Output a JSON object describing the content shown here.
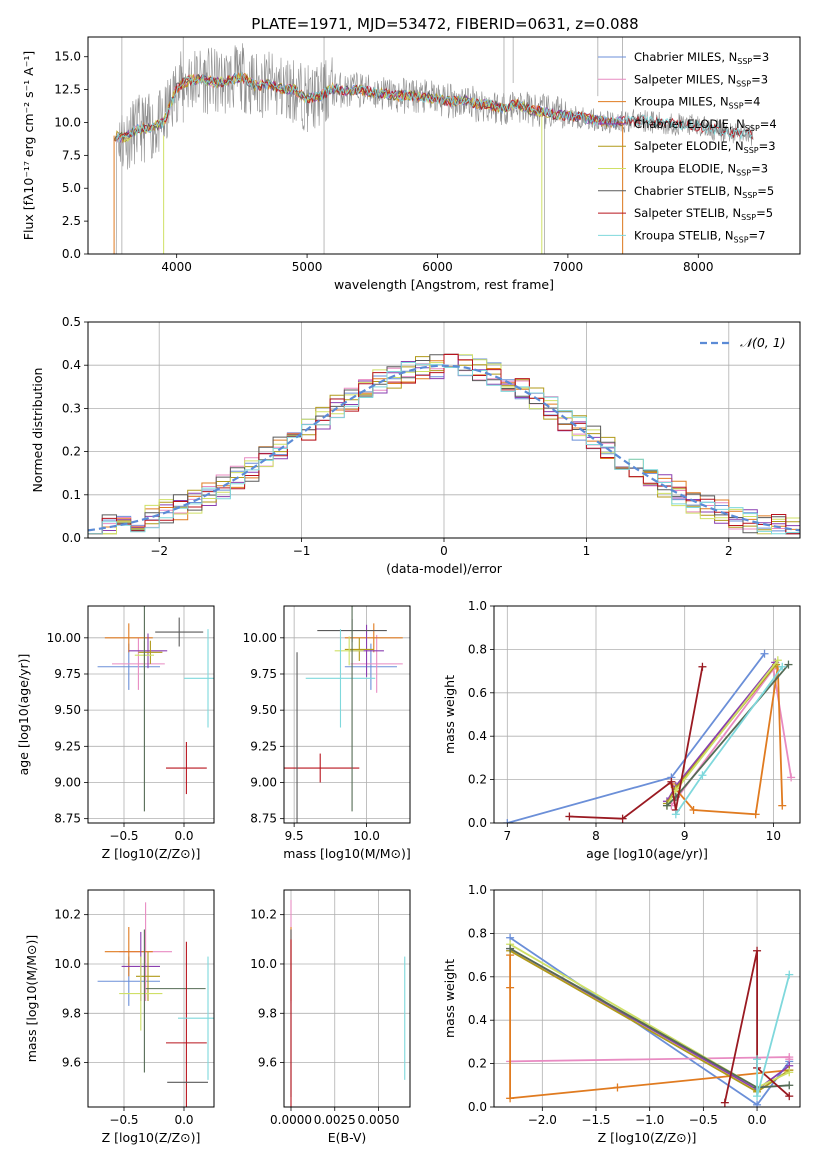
{
  "figure_title": "PLATE=1971, MJD=53472, FIBERID=0631, z=0.088",
  "colors": {
    "chabrier_miles": "#6b8fd8",
    "salpeter_miles": "#e88bc2",
    "kroupa_miles": "#e07b20",
    "chabrier_elodie": "#8a3fb0",
    "salpeter_elodie": "#b09a1a",
    "kroupa_elodie": "#cfe066",
    "chabrier_stelib": "#5a5a5a",
    "salpeter_stelib": "#b8141e",
    "kroupa_stelib": "#7fd8dc",
    "spectrum": "#8c8c8c",
    "grid": "#b0b0b0",
    "normal_curve": "#5b8bd6"
  },
  "chart_data": [
    {
      "id": "spectrum",
      "type": "line",
      "title": "PLATE=1971, MJD=53472, FIBERID=0631, z=0.088",
      "xlabel": "wavelength [Angstrom, rest frame]",
      "ylabel": "Flux [fλ10⁻¹⁷ erg cm⁻² s⁻¹ A⁻¹]",
      "xlim": [
        3320,
        8780
      ],
      "ylim": [
        0,
        16.5
      ],
      "xticks": [
        4000,
        5000,
        6000,
        7000,
        8000
      ],
      "yticks": [
        0.0,
        2.5,
        5.0,
        7.5,
        10.0,
        12.5,
        15.0
      ],
      "grid": false,
      "legend_position": "right",
      "legend": [
        {
          "label": "Chabrier MILES, N",
          "sub": "SSP",
          "suffix": "=3",
          "color": "#6b8fd8"
        },
        {
          "label": "Salpeter MILES, N",
          "sub": "SSP",
          "suffix": "=3",
          "color": "#e88bc2"
        },
        {
          "label": "Kroupa MILES, N",
          "sub": "SSP",
          "suffix": "=4",
          "color": "#e07b20"
        },
        {
          "label": "Chabrier ELODIE, N",
          "sub": "SSP",
          "suffix": "=4",
          "color": "#8a3fb0"
        },
        {
          "label": "Salpeter ELODIE, N",
          "sub": "SSP",
          "suffix": "=3",
          "color": "#b09a1a"
        },
        {
          "label": "Kroupa ELODIE, N",
          "sub": "SSP",
          "suffix": "=3",
          "color": "#cfe066"
        },
        {
          "label": "Chabrier STELIB, N",
          "sub": "SSP",
          "suffix": "=5",
          "color": "#5a5a5a"
        },
        {
          "label": "Salpeter STELIB, N",
          "sub": "SSP",
          "suffix": "=5",
          "color": "#b8141e"
        },
        {
          "label": "Kroupa STELIB, N",
          "sub": "SSP",
          "suffix": "=7",
          "color": "#7fd8dc"
        }
      ],
      "spectrum_outline": {
        "x": [
          3520,
          3600,
          3700,
          3800,
          3900,
          4000,
          4050,
          4100,
          4200,
          4300,
          4400,
          4500,
          4600,
          4700,
          4800,
          4900,
          5000,
          5100,
          5200,
          5300,
          5400,
          5500,
          5600,
          5700,
          5800,
          5900,
          6000,
          6100,
          6200,
          6300,
          6400,
          6500,
          6600,
          6700,
          6800,
          6900,
          7000,
          7100,
          7200,
          7300,
          7400,
          7500,
          7600,
          7700,
          7800,
          7900,
          8000,
          8100,
          8200,
          8300,
          8400
        ],
        "y": [
          9.0,
          8.8,
          9.5,
          9.6,
          10.0,
          12.6,
          13.0,
          13.2,
          13.3,
          13.0,
          13.2,
          13.5,
          12.8,
          12.9,
          12.6,
          12.5,
          11.8,
          12.0,
          12.6,
          12.4,
          12.5,
          12.3,
          12.2,
          12.0,
          12.1,
          11.9,
          11.8,
          11.6,
          11.7,
          11.4,
          11.3,
          11.1,
          11.4,
          11.0,
          10.8,
          10.6,
          10.5,
          10.4,
          10.2,
          10.0,
          10.1,
          10.1,
          10.2,
          9.9,
          9.9,
          9.8,
          9.7,
          9.5,
          9.3,
          9.2,
          9.1
        ]
      }
    },
    {
      "id": "residuals",
      "type": "line",
      "xlabel": "(data-model)/error",
      "ylabel": "Normed distribution",
      "xlim": [
        -2.5,
        2.5
      ],
      "ylim": [
        0,
        0.5
      ],
      "xticks": [
        -2,
        -1,
        0,
        1,
        2
      ],
      "yticks": [
        0.0,
        0.1,
        0.2,
        0.3,
        0.4,
        0.5
      ],
      "grid": true,
      "legend_position": "top-right",
      "legend": [
        {
          "label": "𝒩(0, 1)",
          "style": "dashed",
          "color": "#5b8bd6"
        }
      ],
      "normal_curve": {
        "mu": 0,
        "sigma": 1
      },
      "bin_width": 0.1
    },
    {
      "id": "age_vs_Z",
      "type": "scatter",
      "xlabel": "Z [log10(Z/Z⊙)]",
      "ylabel": "age  [log10(age/yr)]",
      "xlim": [
        -0.8,
        0.25
      ],
      "ylim": [
        8.72,
        10.22
      ],
      "xticks": [
        -0.5,
        0.0
      ],
      "yticks": [
        8.75,
        9.0,
        9.25,
        9.5,
        9.75,
        10.0
      ],
      "grid": true,
      "points": [
        {
          "series": "Chabrier MILES",
          "x": -0.46,
          "y": 9.8,
          "xerr": 0.26,
          "yerr": 0.16,
          "color": "#6b8fd8"
        },
        {
          "series": "Salpeter MILES",
          "x": -0.38,
          "y": 9.82,
          "xerr": 0.22,
          "yerr": 0.18,
          "color": "#e88bc2"
        },
        {
          "series": "Kroupa MILES",
          "x": -0.46,
          "y": 10.0,
          "xerr": 0.2,
          "yerr": 0.1,
          "color": "#e07b20"
        },
        {
          "series": "Chabrier ELODIE",
          "x": -0.3,
          "y": 9.91,
          "xerr": 0.16,
          "yerr": 0.12,
          "color": "#8a3fb0"
        },
        {
          "series": "Salpeter ELODIE",
          "x": -0.28,
          "y": 9.9,
          "xerr": 0.1,
          "yerr": 0.08,
          "color": "#b09a1a"
        },
        {
          "series": "Kroupa ELODIE",
          "x": -0.33,
          "y": 9.88,
          "xerr": 0.08,
          "yerr": 0.1,
          "color": "#cfe066"
        },
        {
          "series": "Chabrier STELIB",
          "x": -0.04,
          "y": 10.04,
          "xerr": 0.2,
          "yerr": 0.1,
          "color": "#5a5a5a"
        },
        {
          "series": "Salpeter STELIB",
          "x": 0.02,
          "y": 9.1,
          "xerr": 0.17,
          "yerr": 0.18,
          "color": "#b8141e"
        },
        {
          "series": "Kroupa STELIB",
          "x": 0.2,
          "y": 9.72,
          "xerr": 0.2,
          "yerr": 0.34,
          "color": "#7fd8dc"
        },
        {
          "series": "Chabrier STELIB (2)",
          "x": -0.33,
          "y": 9.85,
          "xerr": 0.0,
          "yerr": 1.05,
          "color": "#556b55"
        }
      ]
    },
    {
      "id": "age_vs_mass",
      "type": "scatter",
      "xlabel": "mass [log10(M/M⊙)]",
      "ylabel": "",
      "xlim": [
        9.43,
        10.3
      ],
      "ylim": [
        8.72,
        10.22
      ],
      "xticks": [
        9.5,
        10.0
      ],
      "yticks": [
        8.75,
        9.0,
        9.25,
        9.5,
        9.75,
        10.0
      ],
      "grid": true,
      "points": [
        {
          "series": "Chabrier MILES",
          "x": 10.03,
          "y": 9.8,
          "xerr": 0.18,
          "yerr": 0.16,
          "color": "#6b8fd8"
        },
        {
          "series": "Salpeter MILES",
          "x": 10.07,
          "y": 9.82,
          "xerr": 0.18,
          "yerr": 0.2,
          "color": "#e88bc2"
        },
        {
          "series": "Kroupa MILES",
          "x": 10.05,
          "y": 10.0,
          "xerr": 0.2,
          "yerr": 0.1,
          "color": "#e07b20"
        },
        {
          "series": "Chabrier ELODIE",
          "x": 10.0,
          "y": 9.91,
          "xerr": 0.12,
          "yerr": 0.18,
          "color": "#8a3fb0"
        },
        {
          "series": "Salpeter ELODIE",
          "x": 9.95,
          "y": 9.92,
          "xerr": 0.1,
          "yerr": 0.08,
          "color": "#b09a1a"
        },
        {
          "series": "Kroupa ELODIE",
          "x": 9.88,
          "y": 9.91,
          "xerr": 0.1,
          "yerr": 0.1,
          "color": "#cfe066"
        },
        {
          "series": "Chabrier STELIB",
          "x": 9.9,
          "y": 10.05,
          "xerr": 0.24,
          "yerr": 0.08,
          "color": "#5a5a5a"
        },
        {
          "series": "Salpeter STELIB",
          "x": 9.68,
          "y": 9.1,
          "xerr": 0.27,
          "yerr": 0.1,
          "color": "#b8141e"
        },
        {
          "series": "Kroupa STELIB",
          "x": 9.82,
          "y": 9.72,
          "xerr": 0.24,
          "yerr": 0.34,
          "color": "#7fd8dc"
        },
        {
          "series": "Chabrier STELIB (2)",
          "x": 9.52,
          "y": 9.1,
          "xerr": 0.0,
          "yerr": 0.8,
          "color": "#5a5a5a"
        },
        {
          "series": "Chabrier STELIB (3)",
          "x": 9.9,
          "y": 9.8,
          "xerr": 0.0,
          "yerr": 1.0,
          "color": "#556b55"
        }
      ]
    },
    {
      "id": "mass_weight_vs_age",
      "type": "line",
      "xlabel": "age  [log10(age/yr)]",
      "ylabel": "mass weight",
      "xlim": [
        6.85,
        10.3
      ],
      "ylim": [
        0,
        1.0
      ],
      "xticks": [
        7,
        8,
        9,
        10
      ],
      "yticks": [
        0.0,
        0.2,
        0.4,
        0.6,
        0.8,
        1.0
      ],
      "grid": true,
      "series": [
        {
          "name": "Chabrier MILES",
          "color": "#6b8fd8",
          "x": [
            7.0,
            8.85,
            9.9
          ],
          "y": [
            0.0,
            0.21,
            0.78
          ]
        },
        {
          "name": "Salpeter MILES",
          "color": "#e88bc2",
          "x": [
            8.85,
            10.0,
            10.2
          ],
          "y": [
            0.08,
            0.71,
            0.21
          ]
        },
        {
          "name": "Kroupa MILES",
          "color": "#e07b20",
          "x": [
            8.85,
            9.1,
            9.8,
            10.05,
            10.1
          ],
          "y": [
            0.18,
            0.06,
            0.04,
            0.72,
            0.08
          ]
        },
        {
          "name": "Chabrier ELODIE",
          "color": "#8a3fb0",
          "x": [
            8.8,
            8.9,
            10.02
          ],
          "y": [
            0.1,
            0.17,
            0.74
          ]
        },
        {
          "name": "Salpeter ELODIE",
          "color": "#b09a1a",
          "x": [
            8.8,
            8.9,
            10.03
          ],
          "y": [
            0.09,
            0.16,
            0.73
          ]
        },
        {
          "name": "Kroupa ELODIE",
          "color": "#cfe066",
          "x": [
            8.8,
            8.9,
            10.05
          ],
          "y": [
            0.08,
            0.15,
            0.75
          ]
        },
        {
          "name": "Chabrier STELIB",
          "color": "#556b55",
          "x": [
            8.8,
            8.9,
            10.17
          ],
          "y": [
            0.08,
            0.12,
            0.73
          ]
        },
        {
          "name": "Salpeter STELIB",
          "color": "#9a1a22",
          "x": [
            7.7,
            8.3,
            8.85,
            8.9,
            9.2
          ],
          "y": [
            0.03,
            0.02,
            0.19,
            0.06,
            0.72
          ]
        },
        {
          "name": "Kroupa STELIB",
          "color": "#7fd8dc",
          "x": [
            8.9,
            9.2,
            10.1
          ],
          "y": [
            0.04,
            0.22,
            0.72
          ]
        }
      ]
    },
    {
      "id": "mass_vs_Z",
      "type": "scatter",
      "xlabel": "Z [log10(Z/Z⊙)]",
      "ylabel": "mass [log10(M/M⊙)]",
      "xlim": [
        -0.8,
        0.25
      ],
      "ylim": [
        9.42,
        10.3
      ],
      "xticks": [
        -0.5,
        0.0
      ],
      "yticks": [
        9.6,
        9.8,
        10.0,
        10.2
      ],
      "grid": true,
      "points": [
        {
          "series": "Chabrier MILES",
          "x": -0.46,
          "y": 9.93,
          "xerr": 0.26,
          "yerr": 0.1,
          "color": "#6b8fd8"
        },
        {
          "series": "Salpeter MILES",
          "x": -0.32,
          "y": 10.05,
          "xerr": 0.22,
          "yerr": 0.2,
          "color": "#e88bc2"
        },
        {
          "series": "Kroupa MILES",
          "x": -0.46,
          "y": 10.05,
          "xerr": 0.2,
          "yerr": 0.1,
          "color": "#e07b20"
        },
        {
          "series": "Chabrier ELODIE",
          "x": -0.36,
          "y": 9.99,
          "xerr": 0.16,
          "yerr": 0.14,
          "color": "#8a3fb0"
        },
        {
          "series": "Salpeter ELODIE",
          "x": -0.3,
          "y": 9.95,
          "xerr": 0.1,
          "yerr": 0.1,
          "color": "#b09a1a"
        },
        {
          "series": "Kroupa ELODIE",
          "x": -0.36,
          "y": 9.88,
          "xerr": 0.18,
          "yerr": 0.15,
          "color": "#cfe066"
        },
        {
          "series": "Chabrier STELIB",
          "x": -0.07,
          "y": 9.9,
          "xerr": 0.25,
          "yerr": 0.0,
          "color": "#556b55"
        },
        {
          "series": "Salpeter STELIB",
          "x": 0.02,
          "y": 9.68,
          "xerr": 0.17,
          "yerr": 0.41,
          "color": "#b8141e"
        },
        {
          "series": "Kroupa STELIB",
          "x": 0.2,
          "y": 9.78,
          "xerr": 0.25,
          "yerr": 0.25,
          "color": "#7fd8dc"
        },
        {
          "series": "Chabrier STELIB (2)",
          "x": 0.03,
          "y": 9.52,
          "xerr": 0.17,
          "yerr": 0.0,
          "color": "#5a5a5a"
        },
        {
          "series": "Chabrier STELIB (3)",
          "x": -0.33,
          "y": 9.85,
          "xerr": 0.0,
          "yerr": 0.29,
          "color": "#556b55"
        }
      ]
    },
    {
      "id": "mass_vs_ebv",
      "type": "scatter",
      "xlabel": "E(B-V)",
      "ylabel": "",
      "xlim": [
        -0.0004,
        0.0068
      ],
      "ylim": [
        9.42,
        10.3
      ],
      "xticks": [
        0.0,
        0.0025,
        0.005
      ],
      "xticklabels": [
        "0.0000",
        "0.0025",
        "0.0050"
      ],
      "yticks": [
        9.6,
        9.8,
        10.0,
        10.2
      ],
      "grid": true,
      "points": [
        {
          "series": "Salpeter MILES",
          "x": 0.0,
          "y": 10.05,
          "xerr": 0.0,
          "yerr": 0.21,
          "color": "#e88bc2"
        },
        {
          "series": "Kroupa MILES",
          "x": 0.0,
          "y": 10.0,
          "xerr": 0.0,
          "yerr": 0.15,
          "color": "#e07b20"
        },
        {
          "series": "Chabrier STELIB",
          "x": 0.0,
          "y": 9.8,
          "xerr": 0.0,
          "yerr": 0.34,
          "color": "#5a5a5a"
        },
        {
          "series": "Salpeter STELIB",
          "x": 0.0,
          "y": 9.7,
          "xerr": 0.0,
          "yerr": 0.4,
          "color": "#b8141e"
        },
        {
          "series": "Kroupa STELIB",
          "x": 0.0065,
          "y": 9.78,
          "xerr": 0.0,
          "yerr": 0.25,
          "color": "#7fd8dc"
        }
      ]
    },
    {
      "id": "mass_weight_vs_Z",
      "type": "line",
      "xlabel": "Z [log10(Z/Z⊙)]",
      "ylabel": "mass weight",
      "xlim": [
        -2.45,
        0.4
      ],
      "ylim": [
        0,
        1.0
      ],
      "xticks": [
        -2.0,
        -1.5,
        -1.0,
        -0.5,
        0.0
      ],
      "yticks": [
        0.0,
        0.2,
        0.4,
        0.6,
        0.8,
        1.0
      ],
      "grid": true,
      "series": [
        {
          "name": "Chabrier MILES",
          "color": "#6b8fd8",
          "x": [
            -2.3,
            0.0,
            0.3
          ],
          "y": [
            0.78,
            0.01,
            0.21
          ]
        },
        {
          "name": "Salpeter MILES",
          "color": "#e88bc2",
          "x": [
            -2.3,
            0.3,
            0.3
          ],
          "y": [
            0.21,
            0.23,
            0.22
          ]
        },
        {
          "name": "Kroupa MILES",
          "color": "#e07b20",
          "x": [
            -2.3,
            -2.3,
            -2.3,
            -1.3,
            0.3
          ],
          "y": [
            0.7,
            0.55,
            0.04,
            0.09,
            0.17
          ]
        },
        {
          "name": "Chabrier ELODIE",
          "color": "#8a3fb0",
          "x": [
            -2.3,
            0.0,
            0.3
          ],
          "y": [
            0.73,
            0.08,
            0.19
          ]
        },
        {
          "name": "Salpeter ELODIE",
          "color": "#b09a1a",
          "x": [
            -2.3,
            0.0,
            0.3
          ],
          "y": [
            0.72,
            0.07,
            0.17
          ]
        },
        {
          "name": "Kroupa ELODIE",
          "color": "#cfe066",
          "x": [
            -2.3,
            0.0,
            0.3
          ],
          "y": [
            0.75,
            0.09,
            0.16
          ]
        },
        {
          "name": "Chabrier STELIB",
          "color": "#556b55",
          "x": [
            -2.3,
            0.0,
            0.3
          ],
          "y": [
            0.73,
            0.09,
            0.1
          ]
        },
        {
          "name": "Salpeter STELIB",
          "color": "#9a1a22",
          "x": [
            -0.3,
            0.0,
            0.0,
            0.3
          ],
          "y": [
            0.02,
            0.72,
            0.18,
            0.05
          ]
        },
        {
          "name": "Kroupa STELIB",
          "color": "#7fd8dc",
          "x": [
            0.0,
            0.0,
            0.3
          ],
          "y": [
            0.22,
            0.05,
            0.61
          ]
        }
      ]
    }
  ]
}
